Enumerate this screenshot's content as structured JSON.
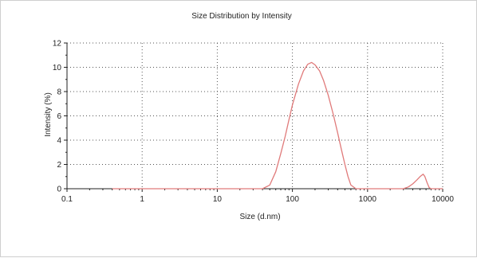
{
  "colors": {
    "series": "#e07a7a",
    "axis": "#222222",
    "grid": "#555555"
  },
  "chart_data": {
    "type": "line",
    "title": "Size Distribution by Intensity",
    "xlabel": "Size (d.nm)",
    "ylabel": "Intensity (%)",
    "x_scale": "log",
    "xlim": [
      0.1,
      10000
    ],
    "ylim": [
      0,
      12
    ],
    "x_ticks": [
      0.1,
      1,
      10,
      100,
      1000,
      10000
    ],
    "x_tick_labels": [
      "0.1",
      "1",
      "10",
      "100",
      "1000",
      "10000"
    ],
    "y_ticks": [
      0,
      2,
      4,
      6,
      8,
      10,
      12
    ],
    "y_tick_labels": [
      "0",
      "2",
      "4",
      "6",
      "8",
      "10",
      "12"
    ],
    "grid": true,
    "legend": "none",
    "series": [
      {
        "x": [
          0.4,
          1,
          5,
          20,
          40,
          50,
          60,
          70,
          80,
          90,
          100,
          120,
          140,
          160,
          180,
          200,
          230,
          260,
          300,
          350,
          400,
          450,
          500,
          550,
          600,
          700,
          1000,
          2000,
          3000,
          3500,
          4000,
          4500,
          5000,
          5500,
          5800,
          6200,
          6600,
          7000,
          8000,
          10000
        ],
        "y": [
          0,
          0,
          0,
          0,
          0,
          0.3,
          1.4,
          2.9,
          4.3,
          5.7,
          6.9,
          8.6,
          9.7,
          10.25,
          10.4,
          10.2,
          9.7,
          8.9,
          7.7,
          6.1,
          4.6,
          3.2,
          2.0,
          1.0,
          0.3,
          0,
          0,
          0,
          0,
          0.15,
          0.4,
          0.7,
          1.0,
          1.2,
          1.0,
          0.5,
          0.1,
          0,
          0,
          0
        ]
      }
    ]
  }
}
